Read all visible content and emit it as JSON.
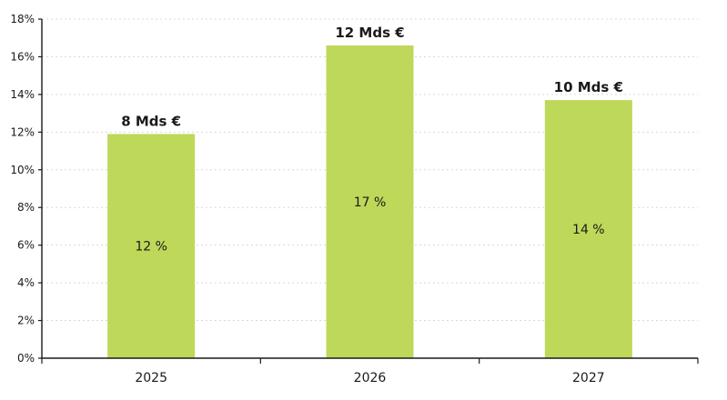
{
  "chart_data": {
    "type": "bar",
    "categories": [
      "2025",
      "2026",
      "2027"
    ],
    "values": [
      11.9,
      16.6,
      13.7
    ],
    "value_labels": [
      "12 %",
      "17 %",
      "14 %"
    ],
    "top_labels": [
      "8 Mds €",
      "12 Mds €",
      "10 Mds €"
    ],
    "y_tick_labels": [
      "0%",
      "2%",
      "4%",
      "6%",
      "8%",
      "10%",
      "12%",
      "14%",
      "16%",
      "18%"
    ],
    "ylim": [
      0,
      18
    ],
    "y_tick_step": 2,
    "grid": true,
    "bar_color": "#bed85a",
    "title": "",
    "xlabel": "",
    "ylabel": ""
  }
}
